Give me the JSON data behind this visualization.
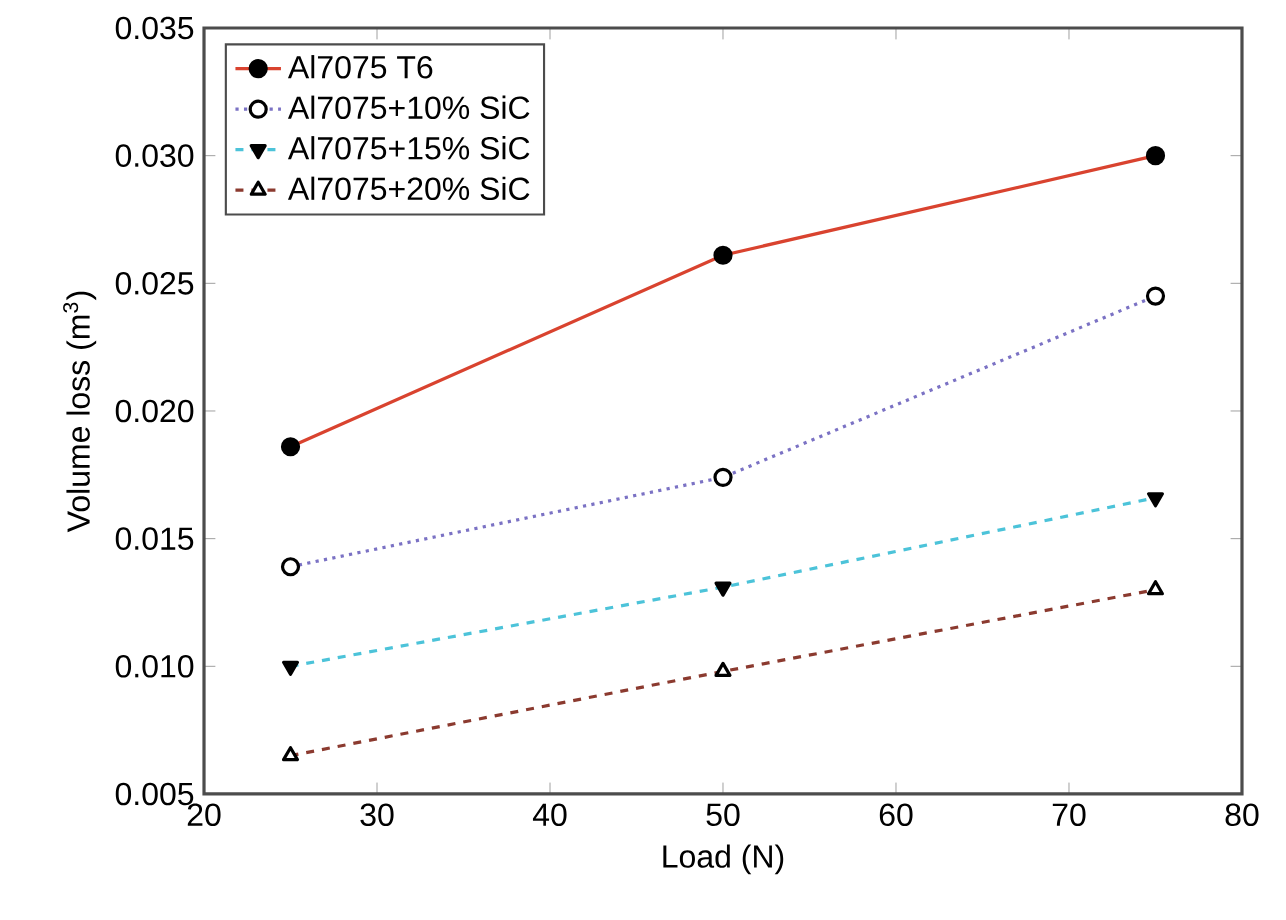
{
  "chart_data": {
    "type": "line",
    "xlabel": "Load (N)",
    "ylabel": "Volume loss (m$^{3}$)",
    "xlim": [
      20,
      80
    ],
    "xticks": [
      20,
      30,
      40,
      50,
      60,
      70,
      80
    ],
    "ylim": [
      0.005,
      0.035
    ],
    "yticks": [
      {
        "value": 0.005,
        "label": "0.005"
      },
      {
        "value": 0.01,
        "label": "0.010"
      },
      {
        "value": 0.015,
        "label": "0.015"
      },
      {
        "value": 0.02,
        "label": "0.020"
      },
      {
        "value": 0.025,
        "label": "0.025"
      },
      {
        "value": 0.03,
        "label": "0.030"
      },
      {
        "value": 0.035,
        "label": "0.035"
      }
    ],
    "x": [
      25,
      50,
      75
    ],
    "legend": "top left",
    "grid": false,
    "series": [
      {
        "name": "Al7075 T6",
        "color": "#d9432f",
        "values": [
          0.0186,
          0.0261,
          0.03
        ],
        "marker": "circle",
        "line_style": "solid"
      },
      {
        "name": "Al7075+10% SiC",
        "color": "#7b72c4",
        "values": [
          0.0139,
          0.0174,
          0.0245
        ],
        "marker": "circle",
        "line_style": "dotted"
      },
      {
        "name": "Al7075+15% SiC",
        "color": "#4cc3d9",
        "values": [
          0.01,
          0.0131,
          0.0166
        ],
        "marker": "triangle",
        "line_style": "dashed"
      },
      {
        "name": "Al7075+20% SiC",
        "color": "#8b3a2f",
        "values": [
          0.0065,
          0.0098,
          0.013
        ],
        "marker": "triangle",
        "line_style": "dashed"
      }
    ]
  }
}
